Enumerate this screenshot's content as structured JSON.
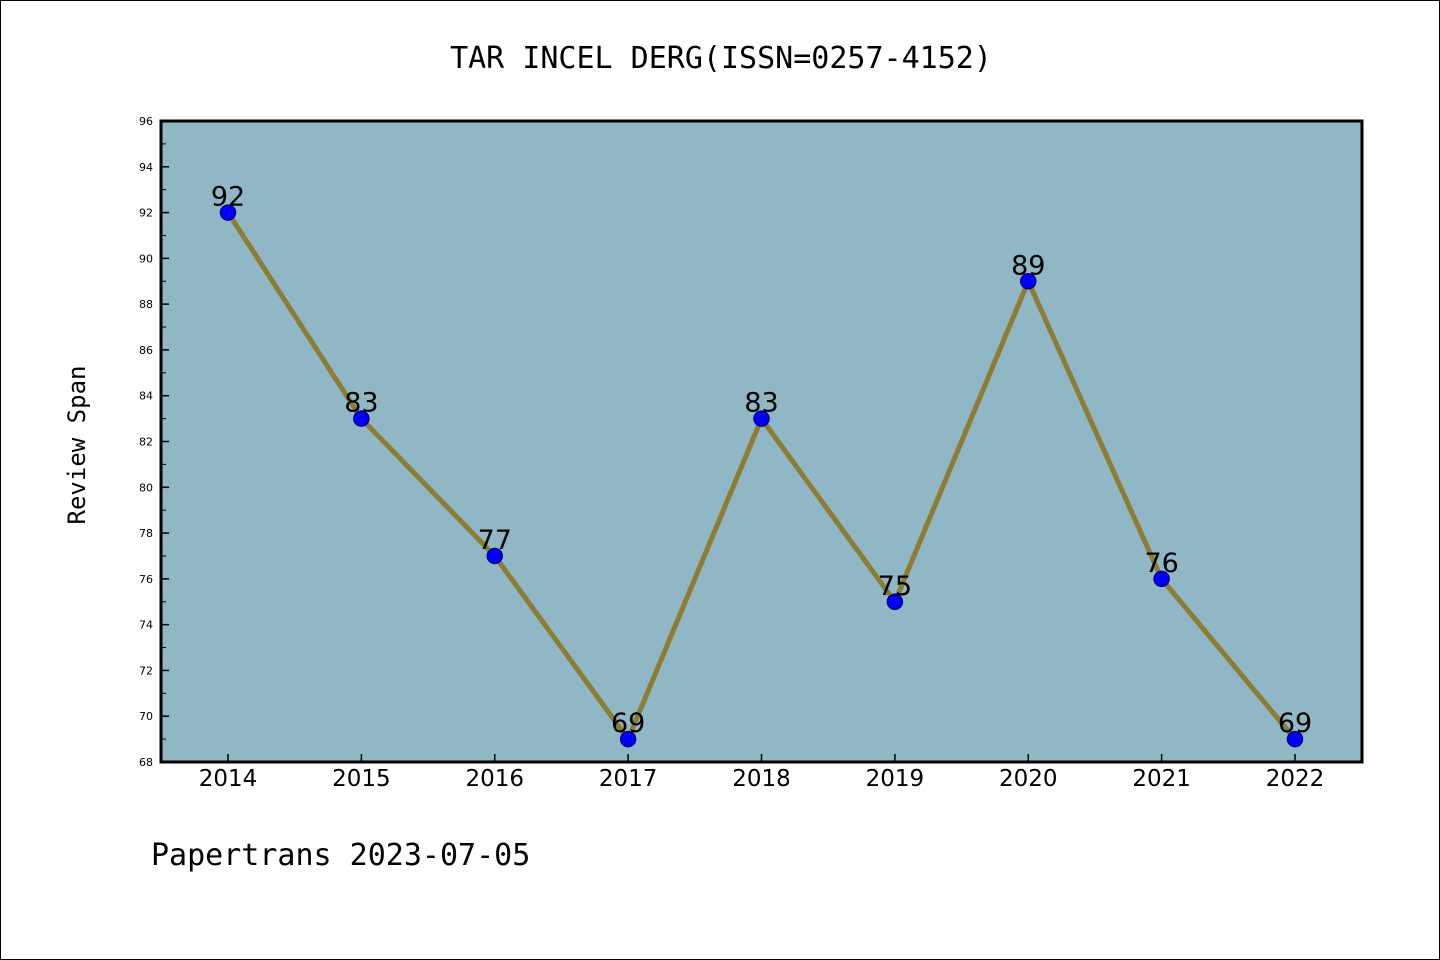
{
  "chart_data": {
    "type": "line",
    "title": "TAR INCEL DERG(ISSN=0257-4152)",
    "ylabel": "Review Span",
    "xlabel": "",
    "footer": "Papertrans 2023-07-05",
    "categories": [
      "2014",
      "2015",
      "2016",
      "2017",
      "2018",
      "2019",
      "2020",
      "2021",
      "2022"
    ],
    "series": [
      {
        "values": [
          92,
          83,
          77,
          69,
          83,
          75,
          89,
          76,
          69
        ]
      }
    ],
    "data_labels": [
      "92",
      "83",
      "77",
      "69",
      "83",
      "75",
      "89",
      "76",
      "69"
    ],
    "ylim": [
      68,
      96
    ],
    "yticks": [
      68,
      70,
      72,
      74,
      76,
      78,
      80,
      82,
      84,
      86,
      88,
      90,
      92,
      94,
      96
    ],
    "ytick_labels": [
      "68",
      "70",
      "72",
      "74",
      "76",
      "78",
      "80",
      "82",
      "84",
      "86",
      "88",
      "90",
      "92",
      "94",
      "96"
    ],
    "grid": false,
    "legend": "none",
    "colors": {
      "plot_background": "#8fb7c5",
      "line": "#8c7d33",
      "marker_fill": "#0000ff",
      "marker_edge": "#00008b",
      "axis": "#000000",
      "text": "#000000"
    }
  }
}
